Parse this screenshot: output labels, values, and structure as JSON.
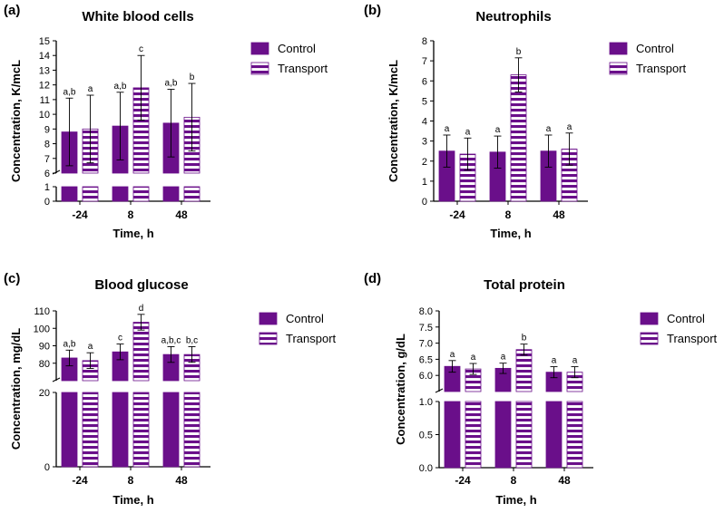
{
  "chart_data": [
    {
      "panel_label": "(a)",
      "type": "bar",
      "title": "White blood cells",
      "xlabel": "Time, h",
      "ylabel": "Concentration, K/mcL",
      "categories": [
        "-24",
        "8",
        "48"
      ],
      "series": [
        {
          "name": "Control",
          "values": [
            8.8,
            9.2,
            9.4
          ],
          "errors": [
            2.3,
            2.3,
            2.3
          ],
          "letters": [
            "a,b",
            "a,b",
            "a,b"
          ]
        },
        {
          "name": "Transport",
          "values": [
            9.0,
            11.8,
            9.8
          ],
          "errors": [
            2.3,
            2.2,
            2.3
          ],
          "letters": [
            "a",
            "c",
            "b"
          ]
        }
      ],
      "axis_break": {
        "lower": [
          0,
          1
        ],
        "upper": [
          6,
          15
        ]
      },
      "lower_ticks": [
        "0",
        "1"
      ],
      "upper_ticks": [
        "6",
        "7",
        "8",
        "9",
        "10",
        "11",
        "12",
        "13",
        "14",
        "15"
      ]
    },
    {
      "panel_label": "(b)",
      "type": "bar",
      "title": "Neutrophils",
      "xlabel": "Time, h",
      "ylabel": "Concentration, K/mcL",
      "categories": [
        "-24",
        "8",
        "48"
      ],
      "series": [
        {
          "name": "Control",
          "values": [
            2.5,
            2.45,
            2.5
          ],
          "errors": [
            0.8,
            0.8,
            0.8
          ],
          "letters": [
            "a",
            "a",
            "a"
          ]
        },
        {
          "name": "Transport",
          "values": [
            2.35,
            6.3,
            2.6
          ],
          "errors": [
            0.8,
            0.85,
            0.8
          ],
          "letters": [
            "a",
            "b",
            "a"
          ]
        }
      ],
      "ylim": [
        0,
        8
      ],
      "ticks": [
        "0",
        "1",
        "2",
        "3",
        "4",
        "5",
        "6",
        "7",
        "8"
      ]
    },
    {
      "panel_label": "(c)",
      "type": "bar",
      "title": "Blood glucose",
      "xlabel": "Time, h",
      "ylabel": "Concentration, mg/dL",
      "categories": [
        "-24",
        "8",
        "48"
      ],
      "series": [
        {
          "name": "Control",
          "values": [
            83,
            86.5,
            85
          ],
          "errors": [
            4.5,
            4.5,
            4.5
          ],
          "letters": [
            "a,b",
            "c",
            "a,b,c"
          ]
        },
        {
          "name": "Transport",
          "values": [
            81.5,
            103.5,
            85
          ],
          "errors": [
            4.5,
            4.5,
            4.5
          ],
          "letters": [
            "a",
            "d",
            "b,c"
          ]
        }
      ],
      "axis_break": {
        "lower": [
          0,
          20
        ],
        "upper": [
          70,
          110
        ]
      },
      "lower_ticks": [
        "0",
        "20"
      ],
      "upper_ticks": [
        "80",
        "90",
        "100",
        "110"
      ]
    },
    {
      "panel_label": "(d)",
      "type": "bar",
      "title": "Total protein",
      "xlabel": "Time, h",
      "ylabel": "Concentration, g/dL",
      "categories": [
        "-24",
        "8",
        "48"
      ],
      "series": [
        {
          "name": "Control",
          "values": [
            6.28,
            6.22,
            6.1
          ],
          "errors": [
            0.18,
            0.16,
            0.17
          ],
          "letters": [
            "a",
            "a",
            "a"
          ]
        },
        {
          "name": "Transport",
          "values": [
            6.2,
            6.8,
            6.1
          ],
          "errors": [
            0.17,
            0.17,
            0.17
          ],
          "letters": [
            "a",
            "b",
            "a"
          ]
        }
      ],
      "axis_break": {
        "lower": [
          0,
          1
        ],
        "upper": [
          5.5,
          8
        ]
      },
      "lower_ticks": [
        "0.0",
        "0.5",
        "1.0"
      ],
      "upper_ticks": [
        "6.0",
        "6.5",
        "7.0",
        "7.5",
        "8.0"
      ]
    }
  ],
  "colors": {
    "bar_fill": "#6a0f8a",
    "stripe": "#ffffff"
  }
}
